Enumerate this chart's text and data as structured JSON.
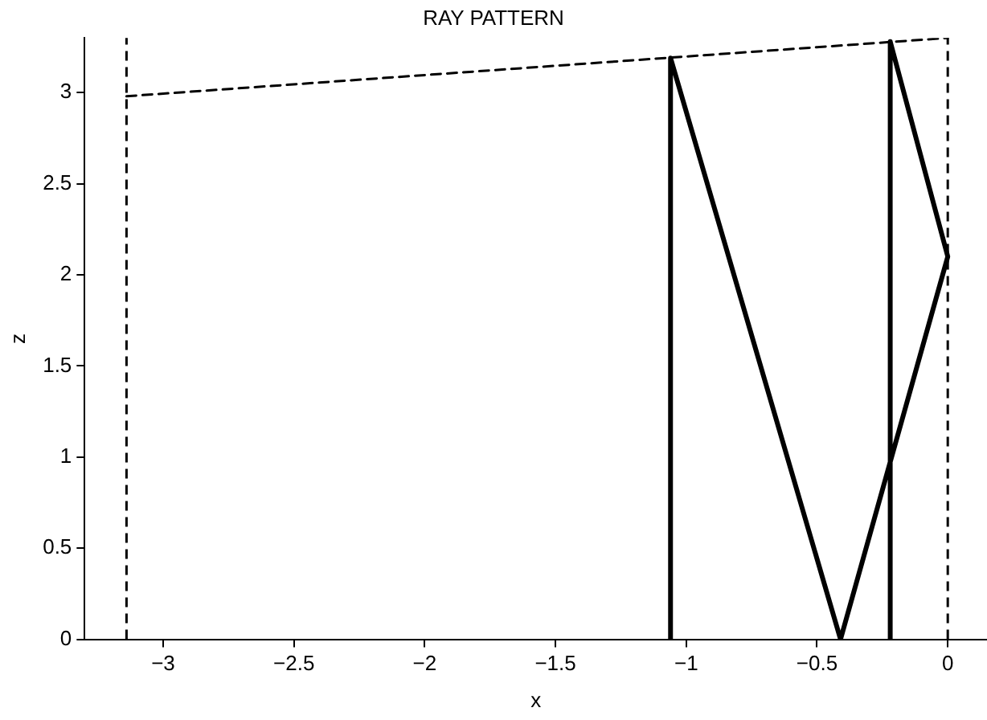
{
  "chart_data": {
    "type": "line",
    "title": "RAY PATTERN",
    "xlabel": "x",
    "ylabel": "z",
    "xlim": [
      -3.3,
      0.15
    ],
    "xticks": [
      {
        "value": -3,
        "label": "−3"
      },
      {
        "value": -2.5,
        "label": "−2.5"
      },
      {
        "value": -2,
        "label": "−2"
      },
      {
        "value": -1.5,
        "label": "−1.5"
      },
      {
        "value": -1,
        "label": "−1"
      },
      {
        "value": -0.5,
        "label": "−0.5"
      },
      0
    ],
    "ylim": [
      0,
      3.3
    ],
    "yticks": [
      0,
      0.5,
      1,
      1.5,
      2,
      2.5,
      3
    ],
    "grid": false,
    "legend": false,
    "marker": "none",
    "series": [
      {
        "color": "#000000",
        "line_style": "dashed",
        "x": [
          -3.14,
          0
        ],
        "values": [
          2.98,
          3.3
        ]
      },
      {
        "color": "#000000",
        "line_style": "solid",
        "x": [
          -1.06,
          -1.06,
          -0.41,
          0,
          -0.22,
          -0.22
        ],
        "values": [
          0,
          3.19,
          0,
          2.1,
          3.28,
          0
        ]
      }
    ],
    "ref_lines": [
      {
        "axis": "x",
        "value": -3.14,
        "color": "#000000",
        "line_style": "dashed"
      },
      {
        "axis": "x",
        "value": 0,
        "color": "#000000",
        "line_style": "dashed"
      }
    ]
  }
}
